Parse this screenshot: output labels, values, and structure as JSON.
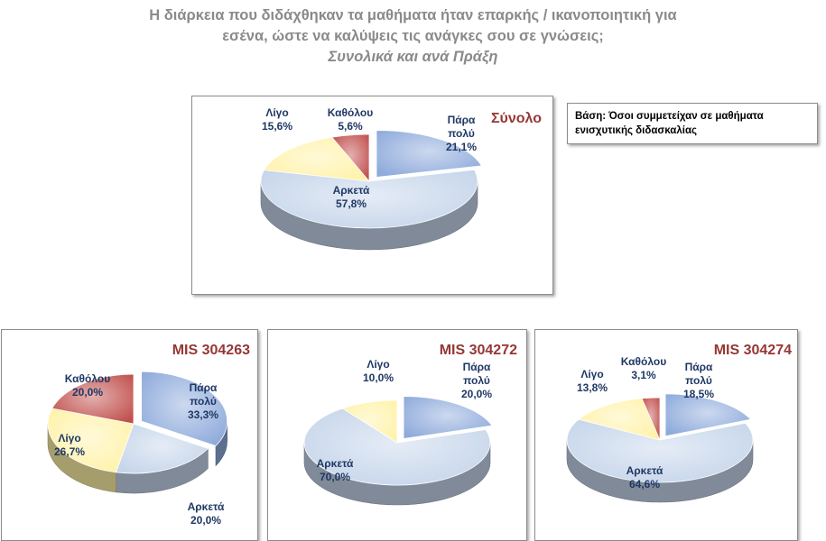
{
  "title": {
    "line1": "Η διάρκεια που διδάχθηκαν τα μαθήματα ήταν επαρκής / ικανοποιητική  για",
    "line2": "εσένα, ώστε να καλύψεις τις ανάγκες σου σε γνώσεις;",
    "subtitle": "Συνολικά και ανά Πράξη"
  },
  "base_note": "Βάση: Όσοι συμμετείχαν σε μαθήματα ενισχυτικής διδασκαλίας",
  "colors": {
    "para_poly": "#8eaadb",
    "arketa": "#c5d5ea",
    "ligo": "#fff2a8",
    "katholou": "#c0504d",
    "title_text": "#8a8a8a",
    "panel_title": "#953735",
    "label_text": "#1f3864"
  },
  "chart_data": [
    {
      "type": "pie",
      "title": "Σύνολο",
      "categories": [
        "Πάρα πολύ",
        "Αρκετά",
        "Λίγο",
        "Καθόλου"
      ],
      "values": [
        21.1,
        57.8,
        15.6,
        5.6
      ],
      "labels": [
        "21,1%",
        "57,8%",
        "15,6%",
        "5,6%"
      ],
      "exploded": "Πάρα πολύ",
      "three_d": true
    },
    {
      "type": "pie",
      "title": "MIS 304263",
      "categories": [
        "Πάρα πολύ",
        "Αρκετά",
        "Λίγο",
        "Καθόλου"
      ],
      "values": [
        33.3,
        20.0,
        26.7,
        20.0
      ],
      "labels": [
        "33,3%",
        "20,0%",
        "26,7%",
        "20,0%"
      ],
      "exploded": "Πάρα πολύ",
      "three_d": true
    },
    {
      "type": "pie",
      "title": "MIS 304272",
      "categories": [
        "Πάρα πολύ",
        "Αρκετά",
        "Λίγο"
      ],
      "values": [
        20.0,
        70.0,
        10.0
      ],
      "labels": [
        "20,0%",
        "70,0%",
        "10,0%"
      ],
      "exploded": "Πάρα πολύ",
      "three_d": true
    },
    {
      "type": "pie",
      "title": "MIS 304274",
      "categories": [
        "Πάρα πολύ",
        "Αρκετά",
        "Λίγο",
        "Καθόλου"
      ],
      "values": [
        18.5,
        64.6,
        13.8,
        3.1
      ],
      "labels": [
        "18,5%",
        "64,6%",
        "13,8%",
        "3,1%"
      ],
      "exploded": "Πάρα πολύ",
      "three_d": true
    }
  ]
}
